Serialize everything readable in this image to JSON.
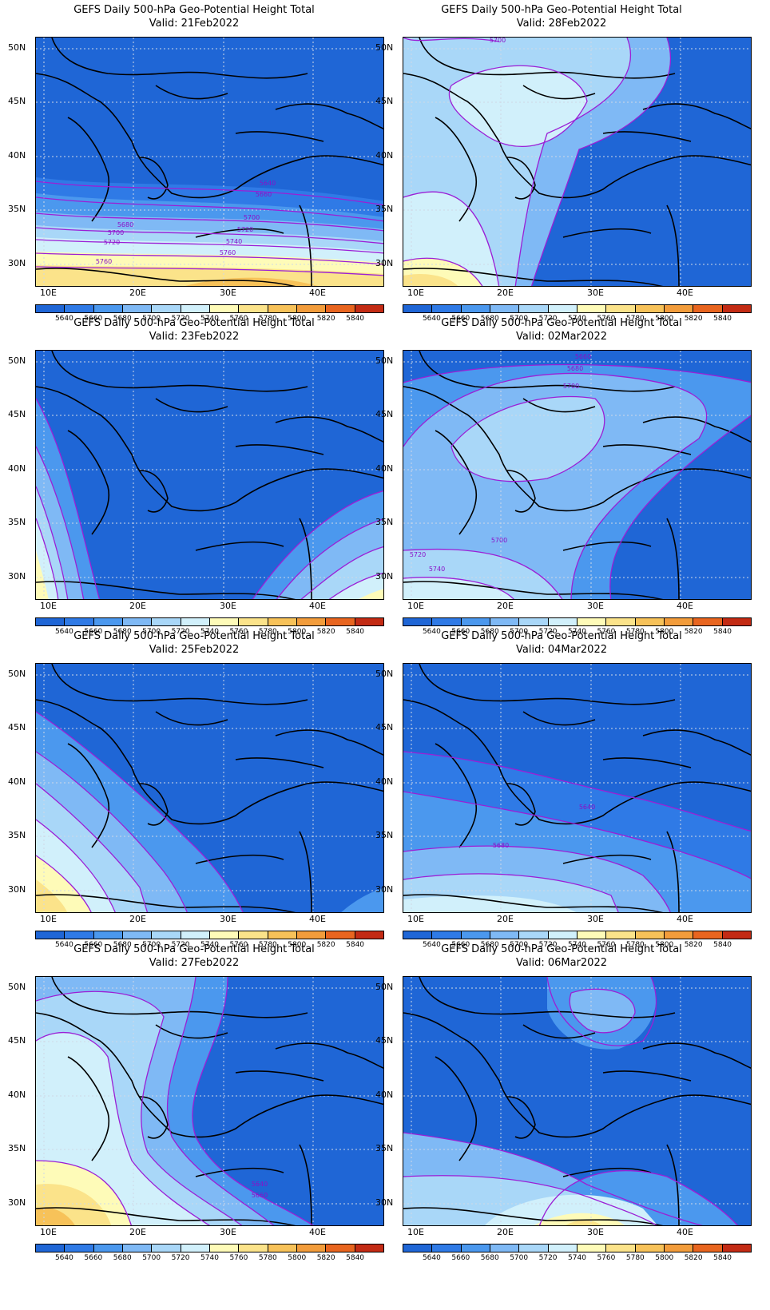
{
  "colorbar": {
    "levels": [
      "5640",
      "5660",
      "5680",
      "5700",
      "5720",
      "5740",
      "5760",
      "5780",
      "5800",
      "5820",
      "5840"
    ],
    "colors": [
      "#1f66d6",
      "#2f7ae6",
      "#4b98ee",
      "#7fb9f5",
      "#a9d7f8",
      "#d1f0fb",
      "#fefbb8",
      "#fbe38a",
      "#f7c259",
      "#f29c3b",
      "#e8651f",
      "#c32b14"
    ]
  },
  "axes": {
    "lat_labels": [
      "50N",
      "45N",
      "40N",
      "35N",
      "30N"
    ],
    "lon_labels": [
      "10E",
      "20E",
      "30E",
      "40E"
    ]
  },
  "panels": [
    {
      "title": "GEFS Daily 500-hPa Geo-Potential Height Total",
      "valid": "Valid: 21Feb2022",
      "contour_labels": [
        "5640",
        "5660",
        "5680",
        "5700",
        "5700",
        "5720",
        "5720",
        "5740",
        "5760",
        "5760"
      ]
    },
    {
      "title": "GEFS Daily 500-hPa Geo-Potential Height Total",
      "valid": "Valid: 28Feb2022",
      "contour_labels": [
        "5700"
      ]
    },
    {
      "title": "GEFS Daily 500-hPa Geo-Potential Height Total",
      "valid": "Valid: 23Feb2022",
      "contour_labels": []
    },
    {
      "title": "GEFS Daily 500-hPa Geo-Potential Height Total",
      "valid": "Valid: 02Mar2022",
      "contour_labels": [
        "5660",
        "5680",
        "5700",
        "5700",
        "5720",
        "5740"
      ]
    },
    {
      "title": "GEFS Daily 500-hPa Geo-Potential Height Total",
      "valid": "Valid: 25Feb2022",
      "contour_labels": []
    },
    {
      "title": "GEFS Daily 500-hPa Geo-Potential Height Total",
      "valid": "Valid: 04Mar2022",
      "contour_labels": [
        "5640",
        "5680"
      ]
    },
    {
      "title": "GEFS Daily 500-hPa Geo-Potential Height Total",
      "valid": "Valid: 27Feb2022",
      "contour_labels": [
        "5640",
        "5660"
      ]
    },
    {
      "title": "GEFS Daily 500-hPa Geo-Potential Height Total",
      "valid": "Valid: 06Mar2022",
      "contour_labels": []
    }
  ]
}
